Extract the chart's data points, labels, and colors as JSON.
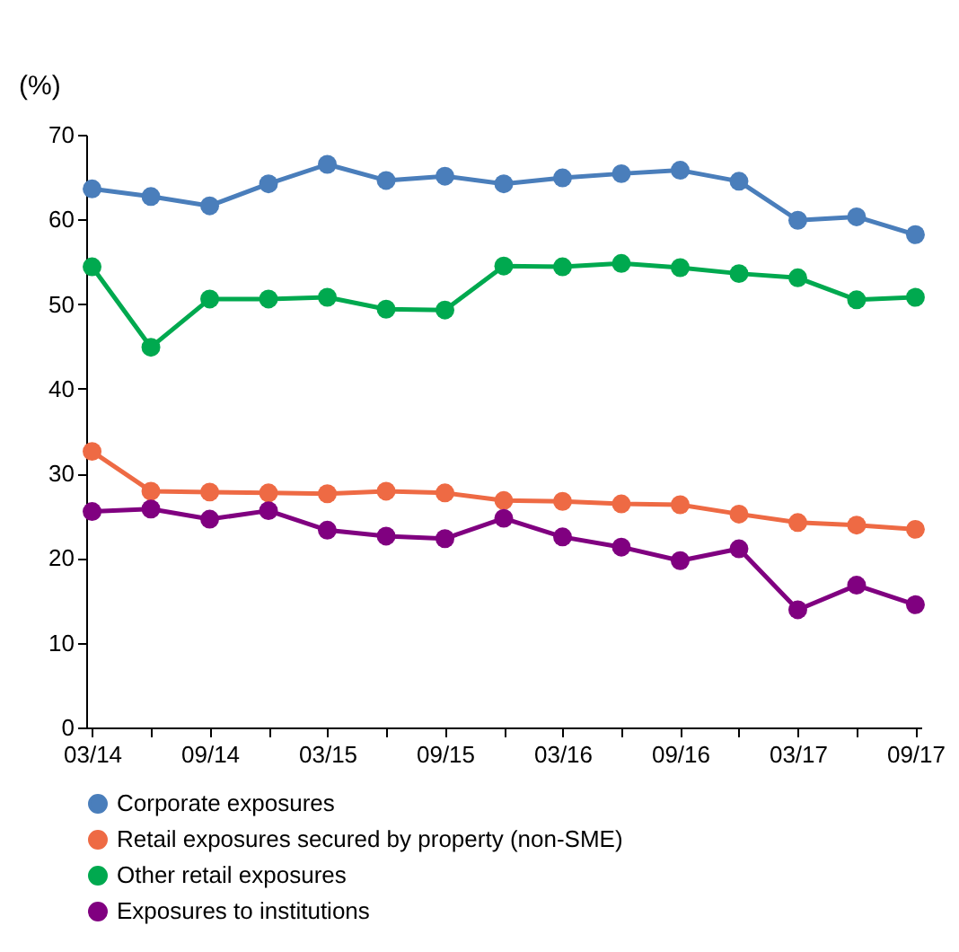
{
  "chart_data": {
    "type": "line",
    "ylabel": "(%)",
    "categories": [
      "03/14",
      null,
      "09/14",
      null,
      "03/15",
      null,
      "09/15",
      null,
      "03/16",
      null,
      "09/16",
      null,
      "03/17",
      null,
      "09/17"
    ],
    "ylim": [
      0,
      70
    ],
    "yticks": [
      0,
      10,
      20,
      30,
      40,
      50,
      60,
      70
    ],
    "grid": false,
    "legend": "bottom",
    "marker": "circle",
    "line_style": "solid",
    "series": [
      {
        "name": "Corporate exposures",
        "color": "#4a7ebb",
        "values": [
          63.6,
          62.7,
          61.6,
          64.2,
          66.5,
          64.6,
          65.1,
          64.2,
          64.9,
          65.4,
          65.8,
          64.5,
          59.9,
          60.3,
          58.2
        ]
      },
      {
        "name": "Retail exposures secured by property (non-SME)",
        "color": "#ee6a44",
        "values": [
          32.6,
          27.9,
          27.8,
          27.7,
          27.6,
          27.9,
          27.7,
          26.8,
          26.7,
          26.4,
          26.3,
          25.2,
          24.2,
          23.9,
          23.4
        ]
      },
      {
        "name": "Other retail exposures",
        "color": "#00a94f",
        "values": [
          54.4,
          44.9,
          50.6,
          50.6,
          50.8,
          49.4,
          49.3,
          54.5,
          54.4,
          54.8,
          54.3,
          53.6,
          53.1,
          50.5,
          50.8
        ]
      },
      {
        "name": "Exposures to institutions",
        "color": "#800080",
        "values": [
          25.5,
          25.8,
          24.6,
          25.6,
          23.3,
          22.6,
          22.3,
          24.7,
          22.5,
          21.3,
          19.7,
          21.1,
          13.9,
          16.8,
          14.5
        ]
      }
    ]
  }
}
